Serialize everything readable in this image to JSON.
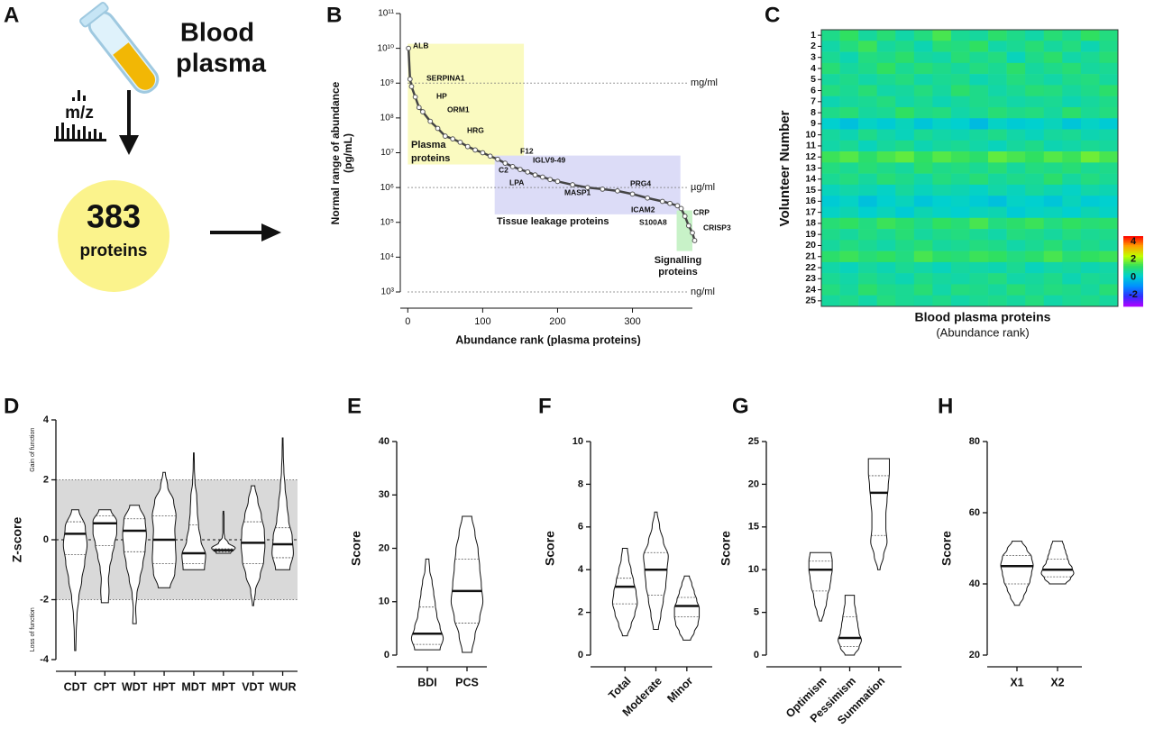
{
  "diagram": {
    "label": "A",
    "title": [
      "Blood",
      "plasma"
    ],
    "count": "383",
    "unit": "proteins",
    "icon_label": "m/z"
  },
  "chart_data": [
    {
      "label": "B",
      "type": "scatter",
      "color": "#555555",
      "log_y": true,
      "xlabel": "Abundance rank (plasma proteins)",
      "ylabel": [
        "Normal range of abundance",
        "(pg/mL)"
      ],
      "x": [
        1,
        3,
        5,
        10,
        15,
        20,
        30,
        40,
        50,
        60,
        70,
        80,
        90,
        100,
        110,
        120,
        130,
        140,
        150,
        160,
        170,
        180,
        190,
        200,
        220,
        240,
        260,
        280,
        300,
        320,
        340,
        350,
        360,
        365,
        370,
        375,
        380,
        383
      ],
      "values": [
        10000000000,
        1300000000,
        800000000,
        400000000,
        200000000,
        150000000,
        80000000,
        50000000,
        30000000,
        25000000,
        20000000,
        15000000,
        12000000,
        10000000,
        8000000,
        6500000,
        5000000,
        4000000,
        3300000,
        2800000,
        2300000,
        2000000,
        1700000,
        1500000,
        1200000,
        1000000,
        900000,
        800000,
        650000,
        500000,
        400000,
        350000,
        300000,
        250000,
        150000,
        80000,
        50000,
        30000
      ],
      "xlim": [
        -10,
        380
      ],
      "xticks": [
        0,
        100,
        200,
        300
      ],
      "ylim": [
        1000,
        100000000000
      ],
      "yticks": [
        {
          "value": 1000,
          "label": "10³"
        },
        {
          "value": 10000,
          "label": "10⁴"
        },
        {
          "value": 100000,
          "label": "10⁵"
        },
        {
          "value": 1000000,
          "label": "10⁶"
        },
        {
          "value": 10000000,
          "label": "10⁷"
        },
        {
          "value": 100000000,
          "label": "10⁸"
        },
        {
          "value": 1000000000,
          "label": "10⁹"
        },
        {
          "value": 10000000000,
          "label": "10¹⁰"
        },
        {
          "value": 100000000000,
          "label": "10¹¹"
        }
      ],
      "ref_lines": [
        {
          "value": 1000000000,
          "label": "mg/ml"
        },
        {
          "value": 1000000,
          "label": "µg/ml"
        },
        {
          "value": 1000,
          "label": "ng/ml"
        }
      ],
      "regions": [
        {
          "label": [
            "Plasma",
            "proteins"
          ],
          "xlim": [
            0,
            155
          ],
          "ylim": [
            4600000,
            13500000000
          ],
          "color": "#fafac0"
        },
        {
          "label": [
            "Tissue leakage proteins"
          ],
          "xlim": [
            116,
            364
          ],
          "ylim": [
            170000,
            8300000
          ],
          "color": "#dcdcf7"
        },
        {
          "label": [
            "Signalling",
            "proteins"
          ],
          "xlim": [
            359,
            380
          ],
          "ylim": [
            15000,
            220000
          ],
          "color": "#c8f2c8"
        }
      ],
      "annotations": [
        "ALB",
        "SERPINA1",
        "HP",
        "ORM1",
        "HRG",
        "F12",
        "IGLV9-49",
        "C2",
        "LPA",
        "PRG4",
        "MASP1",
        "ICAM2",
        "CRP",
        "S100A8",
        "CRISP3"
      ]
    },
    {
      "label": "C",
      "type": "heatmap",
      "ylabel": "Volunteer Number",
      "xlabel": "Blood plasma proteins",
      "subtitle": "(Abundance rank)",
      "rows": [
        1,
        2,
        3,
        4,
        5,
        6,
        7,
        8,
        9,
        10,
        11,
        12,
        13,
        14,
        15,
        16,
        17,
        18,
        19,
        20,
        21,
        22,
        23,
        24,
        25
      ],
      "zlim": [
        -3.3,
        4.6
      ],
      "zticks": [
        4,
        2,
        0,
        -2
      ],
      "colorscale": [
        "#b000ff",
        "#3030ff",
        "#0090ff",
        "#00d0d0",
        "#30e060",
        "#c0ff00",
        "#ffa000",
        "#ff0000"
      ],
      "z": [
        [
          0.8,
          1.2,
          0.6,
          1.0,
          0.5,
          0.9,
          1.4,
          0.7,
          0.6,
          1.1,
          0.8,
          0.5,
          1.0,
          0.7,
          1.2,
          0.9
        ],
        [
          0.5,
          0.9,
          1.3,
          0.6,
          0.8,
          0.4,
          1.0,
          0.9,
          1.2,
          0.5,
          0.7,
          1.0,
          0.6,
          0.9,
          0.4,
          0.8
        ],
        [
          0.7,
          0.4,
          0.9,
          0.8,
          1.1,
          0.6,
          0.5,
          1.0,
          0.7,
          0.9,
          0.3,
          0.8,
          1.1,
          0.5,
          0.7,
          1.0
        ],
        [
          1.0,
          0.6,
          0.8,
          1.2,
          0.7,
          1.0,
          0.8,
          0.6,
          0.9,
          0.7,
          1.1,
          0.6,
          0.8,
          1.0,
          0.6,
          0.7
        ],
        [
          0.6,
          0.8,
          0.5,
          0.7,
          0.9,
          0.5,
          0.7,
          0.8,
          0.4,
          0.6,
          0.9,
          0.7,
          0.5,
          0.8,
          0.9,
          0.6
        ],
        [
          0.9,
          0.7,
          1.0,
          0.5,
          0.6,
          0.9,
          0.6,
          1.1,
          0.8,
          0.5,
          0.7,
          1.0,
          0.9,
          0.6,
          0.8,
          1.1
        ],
        [
          0.4,
          0.6,
          0.7,
          0.9,
          0.5,
          0.7,
          0.4,
          0.6,
          0.8,
          0.7,
          0.5,
          0.6,
          0.7,
          0.4,
          0.6,
          0.8
        ],
        [
          0.8,
          1.0,
          0.6,
          0.7,
          1.2,
          0.8,
          0.9,
          0.5,
          0.7,
          1.0,
          0.8,
          0.9,
          0.6,
          1.1,
          0.7,
          0.9
        ],
        [
          0.1,
          -0.2,
          0.2,
          0.0,
          0.3,
          -0.1,
          0.2,
          0.1,
          -0.3,
          0.2,
          0.0,
          0.1,
          0.3,
          -0.1,
          0.2,
          0.0
        ],
        [
          0.6,
          0.4,
          0.8,
          0.5,
          0.3,
          0.7,
          0.5,
          0.4,
          0.6,
          0.8,
          0.5,
          0.3,
          0.6,
          0.7,
          0.4,
          0.5
        ],
        [
          0.5,
          0.7,
          0.3,
          0.6,
          0.8,
          0.4,
          0.6,
          0.7,
          0.5,
          0.3,
          0.6,
          0.8,
          0.4,
          0.5,
          0.7,
          0.6
        ],
        [
          1.3,
          1.5,
          1.1,
          1.4,
          1.6,
          1.2,
          1.5,
          1.3,
          1.1,
          1.6,
          1.4,
          1.2,
          1.5,
          1.3,
          1.7,
          1.4
        ],
        [
          0.9,
          0.7,
          1.0,
          0.8,
          0.6,
          1.1,
          0.8,
          0.9,
          0.7,
          1.0,
          0.6,
          0.9,
          0.8,
          1.0,
          0.7,
          0.8
        ],
        [
          0.7,
          0.9,
          0.6,
          1.0,
          0.8,
          0.5,
          0.9,
          0.7,
          1.0,
          0.6,
          0.8,
          0.7,
          1.1,
          0.6,
          0.9,
          0.7
        ],
        [
          0.3,
          0.5,
          0.4,
          0.2,
          0.6,
          0.3,
          0.5,
          0.4,
          0.2,
          0.5,
          0.3,
          0.6,
          0.4,
          0.2,
          0.5,
          0.4
        ],
        [
          0.0,
          0.2,
          -0.2,
          0.1,
          0.3,
          -0.1,
          0.1,
          0.2,
          0.0,
          -0.2,
          0.2,
          0.1,
          -0.1,
          0.3,
          0.0,
          0.1
        ],
        [
          0.2,
          0.4,
          0.1,
          0.3,
          0.0,
          0.4,
          0.2,
          0.1,
          0.3,
          0.4,
          0.0,
          0.2,
          0.3,
          0.1,
          0.4,
          0.2
        ],
        [
          1.0,
          1.2,
          0.9,
          1.3,
          1.1,
          0.8,
          1.2,
          1.0,
          1.4,
          0.9,
          1.1,
          1.3,
          0.9,
          1.2,
          1.0,
          1.1
        ],
        [
          0.8,
          0.6,
          0.9,
          0.7,
          1.0,
          0.6,
          0.8,
          0.9,
          0.7,
          0.5,
          0.9,
          0.8,
          0.6,
          0.9,
          0.7,
          0.8
        ],
        [
          0.6,
          0.9,
          0.7,
          0.5,
          0.8,
          1.0,
          0.6,
          0.7,
          0.9,
          0.8,
          0.5,
          0.7,
          1.0,
          0.6,
          0.8,
          0.6
        ],
        [
          1.1,
          1.3,
          1.0,
          1.2,
          0.9,
          1.4,
          1.1,
          1.0,
          1.3,
          1.2,
          0.9,
          1.1,
          1.4,
          1.0,
          1.2,
          1.3
        ],
        [
          0.5,
          0.3,
          0.6,
          0.4,
          0.7,
          0.5,
          0.3,
          0.6,
          0.5,
          0.4,
          0.7,
          0.3,
          0.5,
          0.6,
          0.4,
          0.5
        ],
        [
          0.7,
          0.5,
          0.8,
          0.6,
          0.4,
          0.8,
          0.6,
          0.5,
          0.7,
          0.9,
          0.5,
          0.6,
          0.8,
          0.4,
          0.7,
          0.6
        ],
        [
          0.9,
          0.6,
          1.1,
          0.8,
          0.7,
          1.0,
          0.5,
          0.9,
          0.8,
          0.6,
          1.0,
          0.7,
          0.9,
          0.8,
          0.6,
          1.0
        ],
        [
          0.6,
          0.8,
          0.5,
          0.9,
          0.7,
          0.6,
          0.8,
          0.5,
          0.7,
          0.8,
          0.6,
          0.9,
          0.5,
          0.7,
          0.8,
          0.6
        ]
      ]
    },
    {
      "label": "D",
      "type": "violin",
      "ylabel": "Z-score",
      "ylim": [
        -4,
        4
      ],
      "yticks": [
        -4,
        -2,
        0,
        2,
        4
      ],
      "shade": [
        -2,
        2
      ],
      "ref_lines": [
        0
      ],
      "side_labels": [
        {
          "text": "Gain of function",
          "value": 3
        },
        {
          "text": "Loss of function",
          "value": -3
        }
      ],
      "categories": [
        "CDT",
        "CPT",
        "WDT",
        "HPT",
        "MDT",
        "MPT",
        "VDT",
        "WUR"
      ],
      "violins": [
        {
          "min": -3.7,
          "max": 1.0,
          "median": 0.2,
          "q1": -0.5,
          "q3": 0.6,
          "density": [
            0.05,
            0.08,
            0.15,
            0.3,
            0.55,
            0.8,
            1,
            0.85,
            0.3
          ]
        },
        {
          "min": -2.1,
          "max": 1.0,
          "median": 0.55,
          "q1": -0.2,
          "q3": 0.8,
          "density": [
            0.3,
            0.35,
            0.3,
            0.4,
            0.6,
            0.8,
            1,
            1,
            0.5
          ]
        },
        {
          "min": -2.8,
          "max": 1.15,
          "median": 0.3,
          "q1": -0.4,
          "q3": 0.7,
          "density": [
            0.15,
            0.1,
            0.2,
            0.45,
            0.7,
            0.9,
            1,
            0.9,
            0.4
          ]
        },
        {
          "min": -1.6,
          "max": 2.25,
          "median": 0,
          "q1": -0.8,
          "q3": 0.8,
          "density": [
            0.5,
            0.9,
            1,
            0.95,
            0.9,
            1,
            0.8,
            0.3,
            0.1
          ]
        },
        {
          "min": -1.0,
          "max": 2.9,
          "median": -0.45,
          "q1": -0.8,
          "q3": 0.5,
          "density": [
            0.9,
            1,
            0.6,
            0.4,
            0.3,
            0.25,
            0.1,
            0.05,
            0.03
          ]
        },
        {
          "min": -0.45,
          "max": 0.95,
          "median": -0.35,
          "q1": -0.4,
          "q3": -0.3,
          "density": [
            0.6,
            1,
            0.4,
            0.1,
            0.05,
            0.05,
            0.05,
            0.05,
            0.03
          ]
        },
        {
          "min": -2.2,
          "max": 1.8,
          "median": -0.1,
          "q1": -0.8,
          "q3": 0.6,
          "density": [
            0.05,
            0.2,
            0.6,
            0.9,
            1,
            0.95,
            0.7,
            0.4,
            0.15
          ]
        },
        {
          "min": -1.0,
          "max": 3.4,
          "median": -0.15,
          "q1": -0.6,
          "q3": 0.4,
          "density": [
            0.6,
            0.9,
            0.8,
            0.5,
            0.35,
            0.2,
            0.1,
            0.05,
            0.03
          ]
        }
      ]
    },
    {
      "label": "E",
      "type": "violin",
      "ylabel": "Score",
      "ylim": [
        0,
        40
      ],
      "yticks": [
        0,
        10,
        20,
        30,
        40
      ],
      "categories": [
        "BDI",
        "PCS"
      ],
      "violins": [
        {
          "min": 1,
          "max": 18,
          "median": 4,
          "q1": 2,
          "q3": 9,
          "density": [
            0.8,
            1,
            0.8,
            0.6,
            0.5,
            0.4,
            0.3,
            0.15,
            0.1
          ]
        },
        {
          "min": 0.5,
          "max": 26,
          "median": 12,
          "q1": 6,
          "q3": 18,
          "density": [
            0.3,
            0.5,
            0.8,
            1,
            0.9,
            0.8,
            0.7,
            0.5,
            0.3
          ]
        }
      ]
    },
    {
      "label": "F",
      "type": "violin",
      "ylabel": "Score",
      "ylim": [
        0,
        10
      ],
      "yticks": [
        0,
        2,
        4,
        6,
        8,
        10
      ],
      "rotate_labels": true,
      "categories": [
        "Total",
        "Moderate",
        "Minor"
      ],
      "violins": [
        {
          "min": 0.9,
          "max": 5,
          "median": 3.2,
          "q1": 2.4,
          "q3": 3.6,
          "density": [
            0.2,
            0.5,
            0.8,
            1,
            0.9,
            0.7,
            0.5,
            0.3,
            0.2
          ]
        },
        {
          "min": 1.2,
          "max": 6.7,
          "median": 4,
          "q1": 2.8,
          "q3": 4.8,
          "density": [
            0.2,
            0.4,
            0.6,
            0.8,
            0.9,
            1,
            0.6,
            0.3,
            0.1
          ]
        },
        {
          "min": 0.7,
          "max": 3.7,
          "median": 2.3,
          "q1": 1.8,
          "q3": 2.7,
          "density": [
            0.3,
            0.6,
            0.9,
            1,
            1,
            0.8,
            0.6,
            0.4,
            0.2
          ]
        }
      ]
    },
    {
      "label": "G",
      "type": "violin",
      "ylabel": "Score",
      "ylim": [
        0,
        25
      ],
      "yticks": [
        0,
        5,
        10,
        15,
        20,
        25
      ],
      "rotate_labels": true,
      "categories": [
        "Optimism",
        "Pessimism",
        "Summation"
      ],
      "violins": [
        {
          "min": 4,
          "max": 12,
          "median": 10,
          "q1": 7.5,
          "q3": 11,
          "density": [
            0.1,
            0.3,
            0.5,
            0.6,
            0.8,
            0.9,
            1,
            1,
            0.9
          ]
        },
        {
          "min": 0,
          "max": 7,
          "median": 2,
          "q1": 1,
          "q3": 4.5,
          "density": [
            0.4,
            0.8,
            1,
            0.8,
            0.7,
            0.6,
            0.5,
            0.4,
            0.4
          ]
        },
        {
          "min": 10,
          "max": 23,
          "median": 19,
          "q1": 14,
          "q3": 21,
          "density": [
            0.1,
            0.4,
            0.7,
            0.6,
            0.6,
            0.7,
            0.8,
            0.9,
            0.9
          ]
        }
      ]
    },
    {
      "label": "H",
      "type": "violin",
      "ylabel": "Score",
      "ylim": [
        20,
        80
      ],
      "yticks": [
        20,
        40,
        60,
        80
      ],
      "categories": [
        "X1",
        "X2"
      ],
      "violins": [
        {
          "min": 34,
          "max": 52,
          "median": 45,
          "q1": 40,
          "q3": 48,
          "density": [
            0.15,
            0.4,
            0.6,
            0.8,
            0.9,
            1,
            0.9,
            0.6,
            0.3
          ]
        },
        {
          "min": 40,
          "max": 52,
          "median": 44,
          "q1": 42,
          "q3": 47,
          "density": [
            0.5,
            0.8,
            1,
            0.9,
            0.7,
            0.6,
            0.5,
            0.4,
            0.3
          ]
        }
      ]
    }
  ]
}
